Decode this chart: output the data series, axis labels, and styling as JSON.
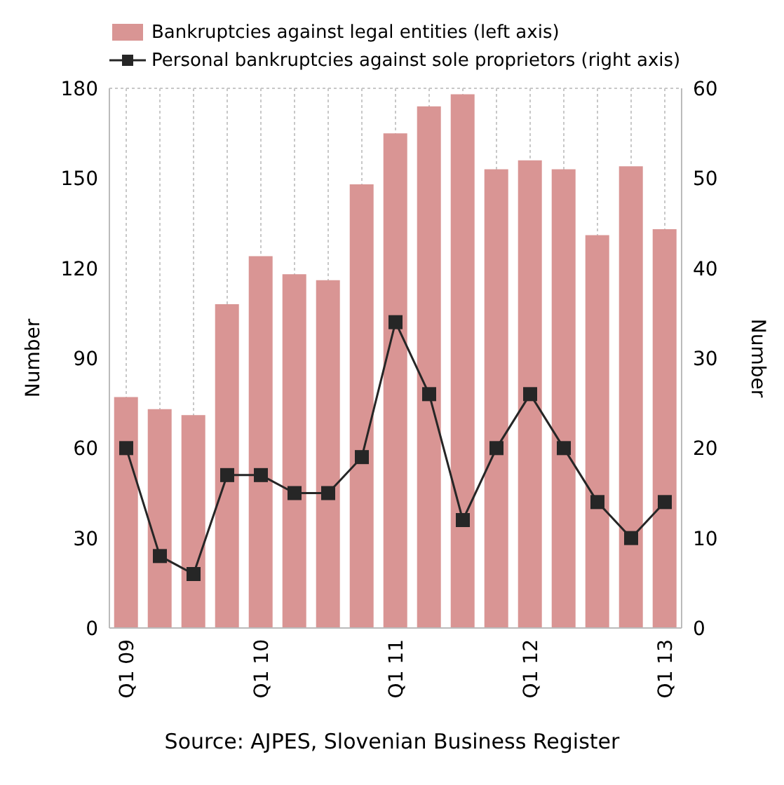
{
  "chart_data": {
    "type": "bar",
    "categories": [
      "Q1 09",
      null,
      null,
      null,
      "Q1 10",
      null,
      null,
      null,
      "Q1 11",
      null,
      null,
      null,
      "Q1 12",
      null,
      null,
      null,
      "Q1 13"
    ],
    "series": [
      {
        "name": "Bankruptcies against legal entities (left axis)",
        "color": "#d99594",
        "values": [
          77,
          73,
          71,
          108,
          124,
          118,
          116,
          148,
          165,
          174,
          178,
          153,
          156,
          153,
          131,
          154,
          133
        ]
      },
      {
        "name": "Personal bankruptcies against sole proprietors (right axis)",
        "type": "line",
        "axis": "y2",
        "color": "#262626",
        "values": [
          20,
          8,
          6,
          17,
          17,
          15,
          15,
          19,
          34,
          26,
          12,
          20,
          26,
          20,
          14,
          10,
          14
        ]
      }
    ],
    "ylabel": "Number",
    "y2label": "Number",
    "ylim": [
      0,
      180
    ],
    "yticks": [
      0,
      30,
      60,
      90,
      120,
      150,
      180
    ],
    "y2lim": [
      0,
      60
    ],
    "y2ticks": [
      0,
      10,
      20,
      30,
      40,
      50,
      60
    ],
    "grid": true,
    "legend": "top",
    "marker": "square",
    "annotations": [
      "Source: AJPES, Slovenian Business Register"
    ]
  }
}
